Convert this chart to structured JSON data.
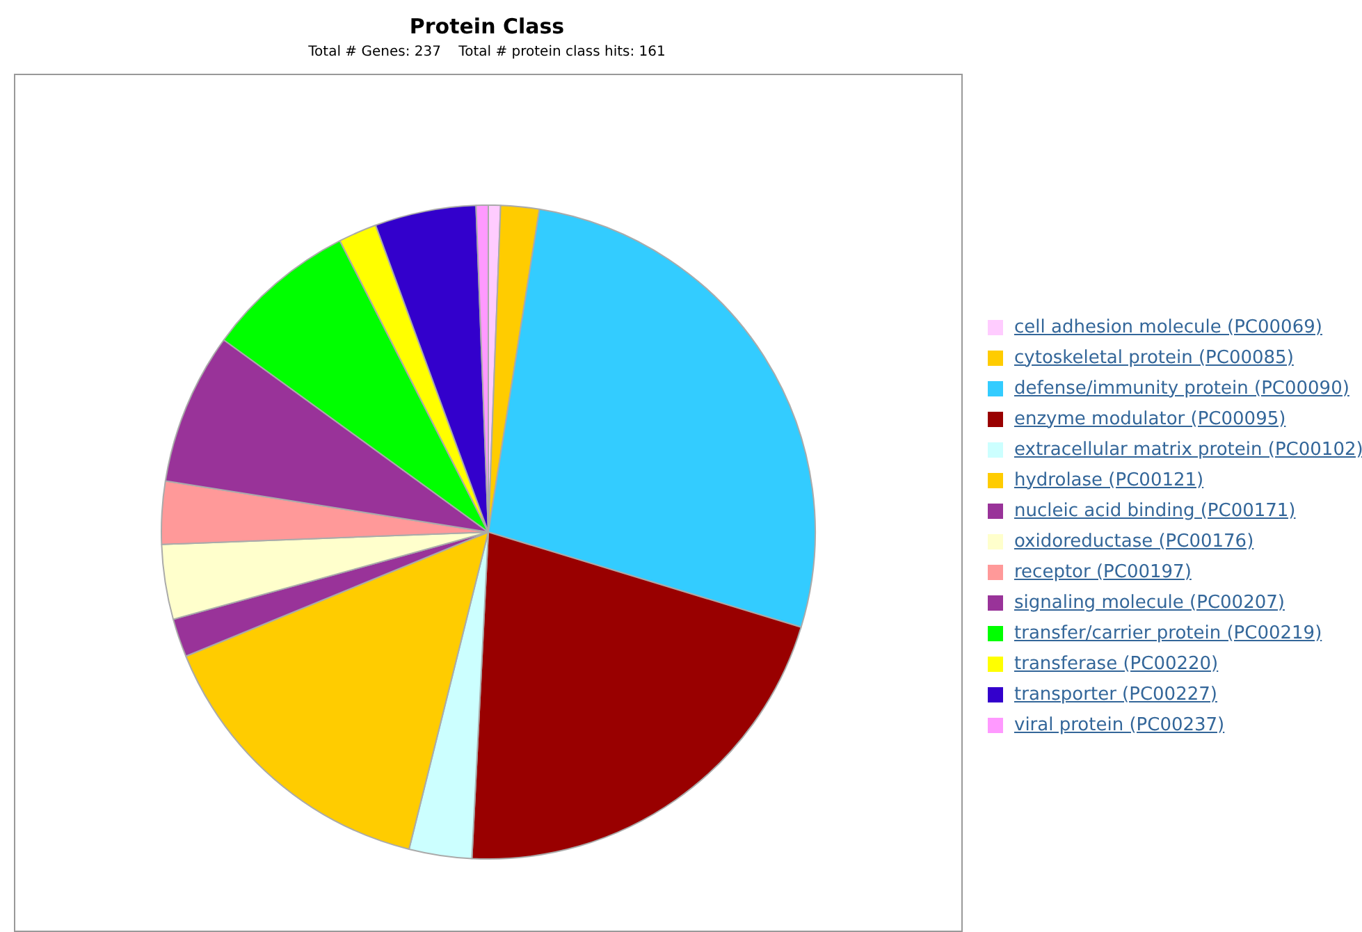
{
  "chart_data": {
    "type": "pie",
    "title": "Protein Class",
    "subtitle": "Total # Genes: 237    Total # protein class hits: 161",
    "categories": [
      "cell adhesion molecule (PC00069)",
      "cytoskeletal protein (PC00085)",
      "defense/immunity protein (PC00090)",
      "enzyme modulator (PC00095)",
      "extracellular matrix protein (PC00102)",
      "hydrolase (PC00121)",
      "nucleic acid binding (PC00171)",
      "oxidoreductase (PC00176)",
      "receptor (PC00197)",
      "signaling molecule (PC00207)",
      "transfer/carrier protein (PC00219)",
      "transferase (PC00220)",
      "transporter (PC00227)",
      "viral protein (PC00237)"
    ],
    "values": [
      0.6,
      1.9,
      27.2,
      21.1,
      3.1,
      14.9,
      1.9,
      3.7,
      3.1,
      7.5,
      7.5,
      1.9,
      5.0,
      0.6
    ],
    "colors": [
      "#ffccff",
      "#ffcc00",
      "#33ccff",
      "#990000",
      "#ccffff",
      "#ffcc00",
      "#993399",
      "#ffffcc",
      "#ff9999",
      "#993399",
      "#00ff00",
      "#ffff00",
      "#3300cc",
      "#ff99ff"
    ],
    "legend": "right"
  }
}
